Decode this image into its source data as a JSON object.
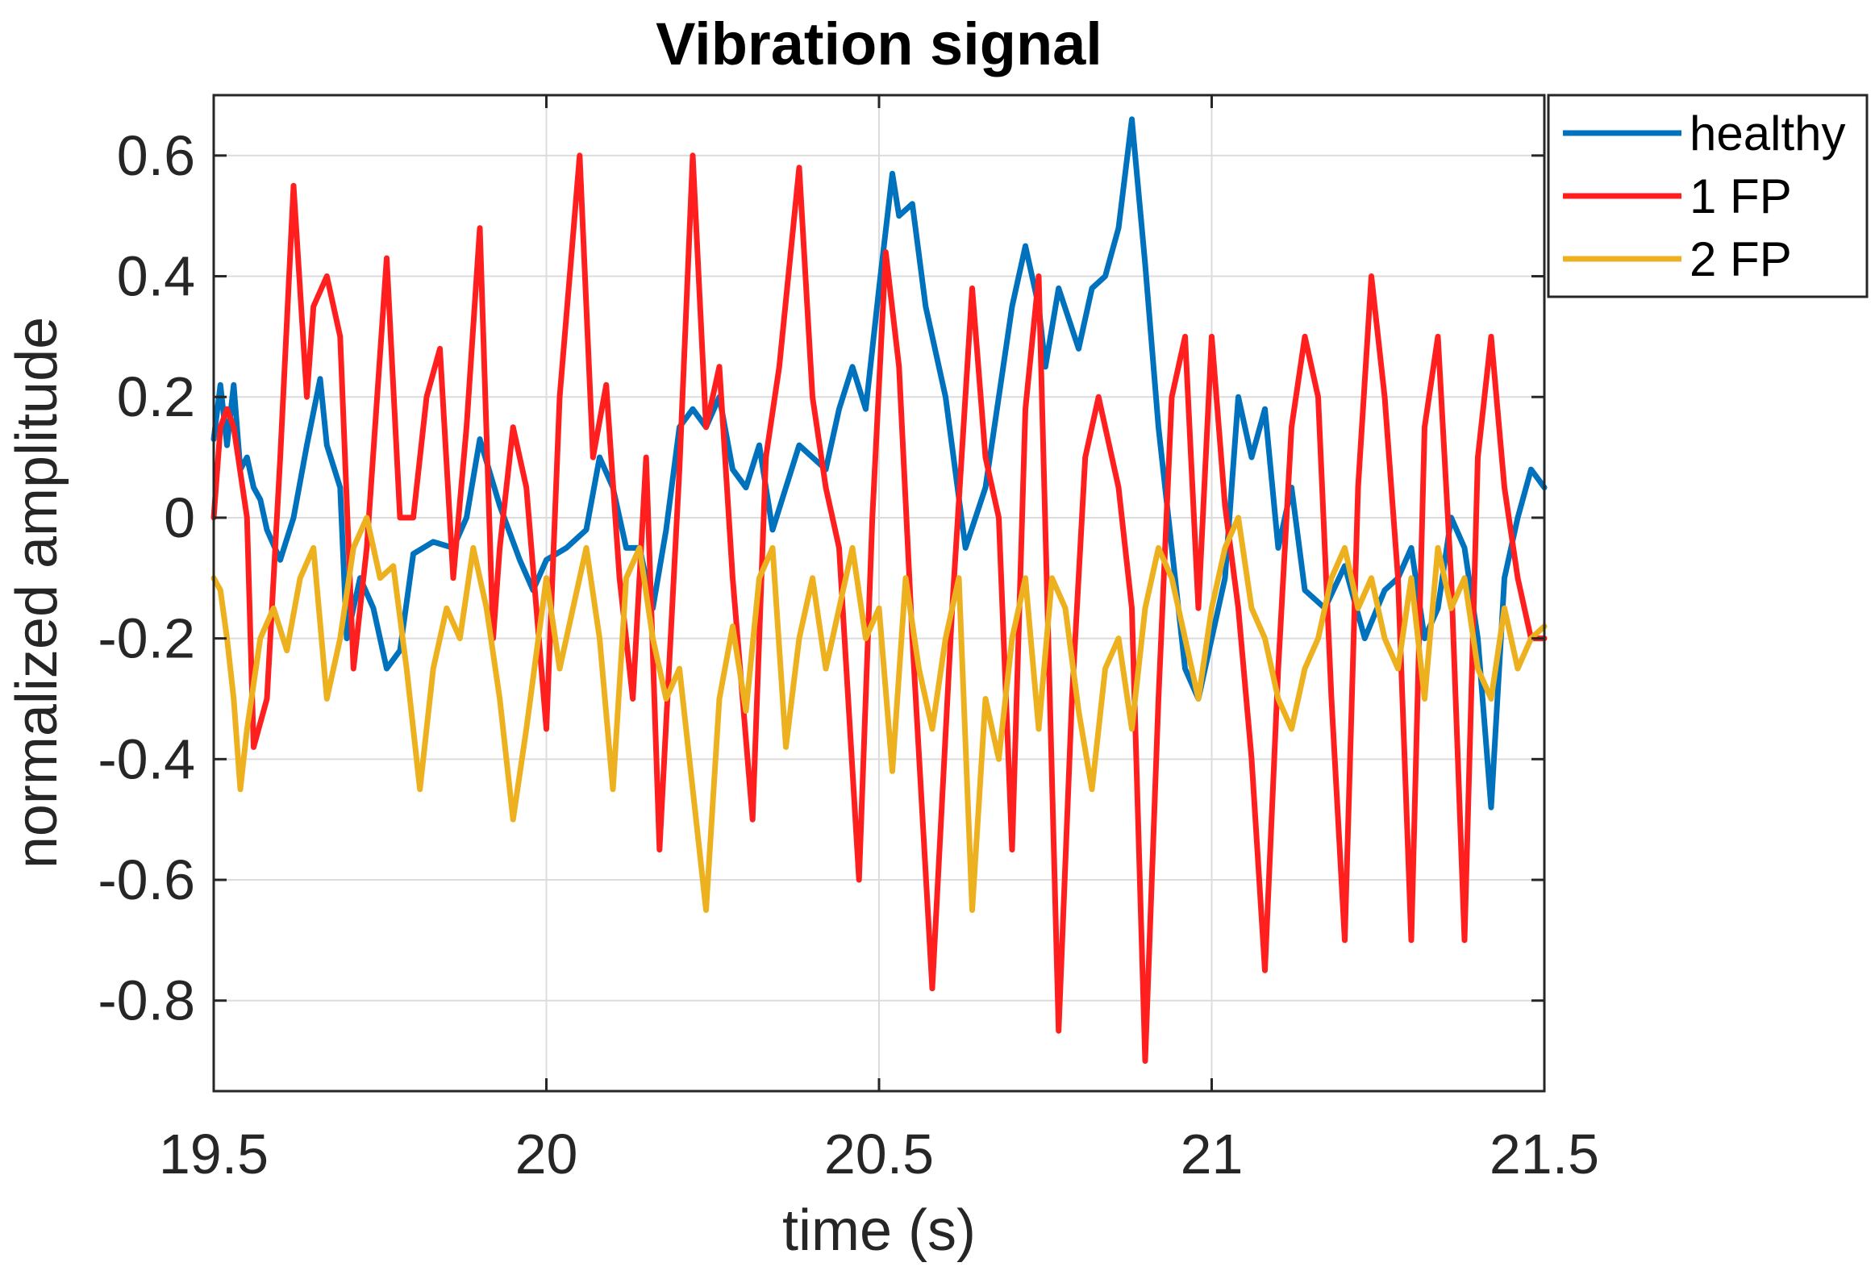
{
  "chart_data": {
    "type": "line",
    "title": "Vibration signal",
    "xlabel": "time (s)",
    "ylabel": "normalized amplitude",
    "xlim": [
      19.5,
      21.5
    ],
    "ylim": [
      -0.95,
      0.7
    ],
    "xticks": [
      19.5,
      20,
      20.5,
      21,
      21.5
    ],
    "xtick_labels": [
      "19.5",
      "20",
      "20.5",
      "21",
      "21.5"
    ],
    "yticks": [
      0.6,
      0.4,
      0.2,
      0,
      -0.2,
      -0.4,
      -0.6,
      -0.8
    ],
    "ytick_labels": [
      "0.6",
      "0.4",
      "0.2",
      "0",
      "-0.2",
      "-0.4",
      "-0.6",
      "-0.8"
    ],
    "grid": true,
    "legend_position": "outside-top-right",
    "series": [
      {
        "name": "healthy",
        "color": "#0072BD",
        "x": [
          19.5,
          19.51,
          19.52,
          19.53,
          19.54,
          19.55,
          19.56,
          19.57,
          19.58,
          19.6,
          19.62,
          19.64,
          19.66,
          19.67,
          19.69,
          19.7,
          19.72,
          19.74,
          19.76,
          19.78,
          19.8,
          19.83,
          19.86,
          19.88,
          19.9,
          19.93,
          19.96,
          19.98,
          20.0,
          20.03,
          20.06,
          20.08,
          20.1,
          20.12,
          20.14,
          20.16,
          20.18,
          20.2,
          20.22,
          20.24,
          20.26,
          20.28,
          20.3,
          20.32,
          20.34,
          20.36,
          20.38,
          20.4,
          20.42,
          20.44,
          20.46,
          20.48,
          20.5,
          20.52,
          20.53,
          20.55,
          20.57,
          20.6,
          20.63,
          20.66,
          20.68,
          20.7,
          20.72,
          20.74,
          20.75,
          20.77,
          20.8,
          20.82,
          20.84,
          20.86,
          20.88,
          20.9,
          20.92,
          20.94,
          20.96,
          20.98,
          21.0,
          21.02,
          21.04,
          21.06,
          21.08,
          21.1,
          21.12,
          21.14,
          21.17,
          21.2,
          21.23,
          21.26,
          21.28,
          21.3,
          21.32,
          21.34,
          21.36,
          21.38,
          21.4,
          21.42,
          21.44,
          21.46,
          21.48,
          21.5
        ],
        "values": [
          0.13,
          0.22,
          0.12,
          0.22,
          0.08,
          0.1,
          0.05,
          0.03,
          -0.02,
          -0.07,
          0.0,
          0.12,
          0.23,
          0.12,
          0.05,
          -0.2,
          -0.1,
          -0.15,
          -0.25,
          -0.22,
          -0.06,
          -0.04,
          -0.05,
          0.0,
          0.13,
          0.02,
          -0.07,
          -0.12,
          -0.07,
          -0.05,
          -0.02,
          0.1,
          0.05,
          -0.05,
          -0.05,
          -0.15,
          -0.02,
          0.15,
          0.18,
          0.15,
          0.2,
          0.08,
          0.05,
          0.12,
          -0.02,
          0.05,
          0.12,
          0.1,
          0.08,
          0.18,
          0.25,
          0.18,
          0.38,
          0.57,
          0.5,
          0.52,
          0.35,
          0.2,
          -0.05,
          0.05,
          0.2,
          0.35,
          0.45,
          0.35,
          0.25,
          0.38,
          0.28,
          0.38,
          0.4,
          0.48,
          0.66,
          0.42,
          0.15,
          -0.05,
          -0.25,
          -0.3,
          -0.2,
          -0.1,
          0.2,
          0.1,
          0.18,
          -0.05,
          0.05,
          -0.12,
          -0.15,
          -0.08,
          -0.2,
          -0.12,
          -0.1,
          -0.05,
          -0.2,
          -0.15,
          0.0,
          -0.05,
          -0.2,
          -0.48,
          -0.1,
          0.0,
          0.08,
          0.05
        ]
      },
      {
        "name": "1 FP",
        "color": "#FF1F1F",
        "x": [
          19.5,
          19.51,
          19.52,
          19.53,
          19.55,
          19.56,
          19.58,
          19.6,
          19.62,
          19.64,
          19.65,
          19.67,
          19.69,
          19.71,
          19.73,
          19.76,
          19.78,
          19.8,
          19.82,
          19.84,
          19.86,
          19.88,
          19.9,
          19.92,
          19.93,
          19.95,
          19.97,
          20.0,
          20.02,
          20.05,
          20.07,
          20.09,
          20.11,
          20.13,
          20.15,
          20.17,
          20.2,
          20.22,
          20.24,
          20.26,
          20.28,
          20.31,
          20.33,
          20.35,
          20.38,
          20.4,
          20.42,
          20.44,
          20.47,
          20.49,
          20.51,
          20.53,
          20.55,
          20.58,
          20.61,
          20.64,
          20.66,
          20.68,
          20.7,
          20.72,
          20.74,
          20.77,
          20.79,
          20.81,
          20.83,
          20.86,
          20.88,
          20.9,
          20.92,
          20.94,
          20.96,
          20.98,
          21.0,
          21.02,
          21.04,
          21.06,
          21.08,
          21.1,
          21.12,
          21.14,
          21.16,
          21.18,
          21.2,
          21.22,
          21.24,
          21.26,
          21.28,
          21.3,
          21.32,
          21.34,
          21.36,
          21.38,
          21.4,
          21.42,
          21.44,
          21.46,
          21.48,
          21.5
        ],
        "values": [
          0.0,
          0.15,
          0.18,
          0.15,
          0.0,
          -0.38,
          -0.3,
          0.1,
          0.55,
          0.2,
          0.35,
          0.4,
          0.3,
          -0.25,
          -0.05,
          0.43,
          0.0,
          0.0,
          0.2,
          0.28,
          -0.1,
          0.15,
          0.48,
          -0.2,
          -0.05,
          0.15,
          0.05,
          -0.35,
          0.2,
          0.6,
          0.1,
          0.22,
          -0.1,
          -0.3,
          0.1,
          -0.55,
          0.08,
          0.6,
          0.15,
          0.25,
          -0.1,
          -0.5,
          0.1,
          0.25,
          0.58,
          0.2,
          0.05,
          -0.05,
          -0.6,
          0.0,
          0.44,
          0.25,
          -0.2,
          -0.78,
          -0.15,
          0.38,
          0.1,
          0.0,
          -0.55,
          0.18,
          0.4,
          -0.85,
          -0.3,
          0.1,
          0.2,
          0.05,
          -0.15,
          -0.9,
          -0.3,
          0.2,
          0.3,
          -0.15,
          0.3,
          0.02,
          -0.15,
          -0.4,
          -0.75,
          -0.25,
          0.15,
          0.3,
          0.2,
          -0.3,
          -0.7,
          0.05,
          0.4,
          0.2,
          -0.1,
          -0.7,
          0.15,
          0.3,
          -0.1,
          -0.7,
          0.1,
          0.3,
          0.05,
          -0.1,
          -0.2,
          -0.2
        ]
      },
      {
        "name": "2 FP",
        "color": "#EDB120",
        "x": [
          19.5,
          19.51,
          19.52,
          19.53,
          19.54,
          19.55,
          19.57,
          19.59,
          19.61,
          19.63,
          19.65,
          19.67,
          19.69,
          19.71,
          19.73,
          19.75,
          19.77,
          19.79,
          19.81,
          19.83,
          19.85,
          19.87,
          19.89,
          19.91,
          19.93,
          19.95,
          19.97,
          20.0,
          20.02,
          20.04,
          20.06,
          20.08,
          20.1,
          20.12,
          20.14,
          20.16,
          20.18,
          20.2,
          20.22,
          20.24,
          20.26,
          20.28,
          20.3,
          20.32,
          20.34,
          20.36,
          20.38,
          20.4,
          20.42,
          20.44,
          20.46,
          20.48,
          20.5,
          20.52,
          20.54,
          20.56,
          20.58,
          20.6,
          20.62,
          20.64,
          20.66,
          20.68,
          20.7,
          20.72,
          20.74,
          20.76,
          20.78,
          20.8,
          20.82,
          20.84,
          20.86,
          20.88,
          20.9,
          20.92,
          20.94,
          20.96,
          20.98,
          21.0,
          21.02,
          21.04,
          21.06,
          21.08,
          21.1,
          21.12,
          21.14,
          21.16,
          21.18,
          21.2,
          21.22,
          21.24,
          21.26,
          21.28,
          21.3,
          21.32,
          21.34,
          21.36,
          21.38,
          21.4,
          21.42,
          21.44,
          21.46,
          21.48,
          21.5
        ],
        "values": [
          -0.1,
          -0.12,
          -0.2,
          -0.3,
          -0.45,
          -0.35,
          -0.2,
          -0.15,
          -0.22,
          -0.1,
          -0.05,
          -0.3,
          -0.2,
          -0.05,
          0.0,
          -0.1,
          -0.08,
          -0.25,
          -0.45,
          -0.25,
          -0.15,
          -0.2,
          -0.05,
          -0.15,
          -0.3,
          -0.5,
          -0.35,
          -0.1,
          -0.25,
          -0.15,
          -0.05,
          -0.2,
          -0.45,
          -0.1,
          -0.05,
          -0.2,
          -0.3,
          -0.25,
          -0.45,
          -0.65,
          -0.3,
          -0.18,
          -0.32,
          -0.1,
          -0.05,
          -0.38,
          -0.2,
          -0.1,
          -0.25,
          -0.15,
          -0.05,
          -0.2,
          -0.15,
          -0.42,
          -0.1,
          -0.25,
          -0.35,
          -0.2,
          -0.1,
          -0.65,
          -0.3,
          -0.4,
          -0.2,
          -0.1,
          -0.35,
          -0.1,
          -0.15,
          -0.32,
          -0.45,
          -0.25,
          -0.2,
          -0.35,
          -0.15,
          -0.05,
          -0.1,
          -0.2,
          -0.3,
          -0.15,
          -0.05,
          0.0,
          -0.15,
          -0.2,
          -0.3,
          -0.35,
          -0.25,
          -0.2,
          -0.1,
          -0.05,
          -0.15,
          -0.1,
          -0.2,
          -0.25,
          -0.1,
          -0.3,
          -0.05,
          -0.15,
          -0.1,
          -0.25,
          -0.3,
          -0.15,
          -0.25,
          -0.2,
          -0.18
        ]
      }
    ]
  }
}
